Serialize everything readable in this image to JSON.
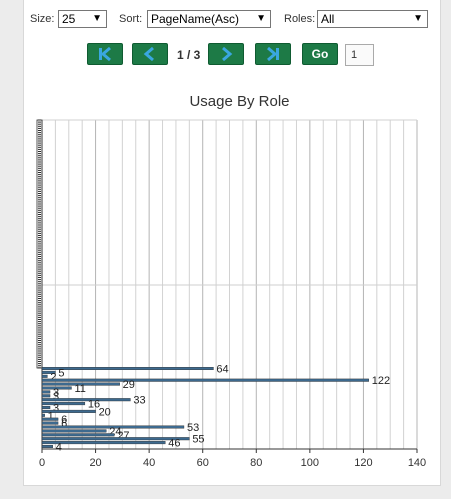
{
  "filters": {
    "size_label": "Size:",
    "size_value": "25",
    "sort_label": "Sort:",
    "sort_value": "PageName(Asc)",
    "roles_label": "Roles:",
    "roles_value": "All"
  },
  "pager": {
    "page_info": "1 / 3",
    "go_label": "Go",
    "page_input": "1"
  },
  "icons": {
    "first": "first-page-icon",
    "prev": "prev-page-icon",
    "next": "next-page-icon",
    "last": "last-page-icon"
  },
  "colors": {
    "button_green": "#1d7a46",
    "icon_blue": "#3aa7e0",
    "bar_fill": "#3d6a8f",
    "bar_outline": "#2b2b2b"
  },
  "chart_data": {
    "type": "bar",
    "orientation": "horizontal",
    "title": "Usage By Role",
    "xlabel": "",
    "ylabel": "",
    "xlim": [
      0,
      140
    ],
    "xticks": [
      0,
      20,
      40,
      60,
      80,
      100,
      120,
      140
    ],
    "grid": true,
    "values": [
      64,
      5,
      2,
      122,
      29,
      11,
      3,
      3,
      33,
      16,
      3,
      20,
      1,
      6,
      6,
      53,
      24,
      27,
      55,
      46,
      4
    ]
  }
}
